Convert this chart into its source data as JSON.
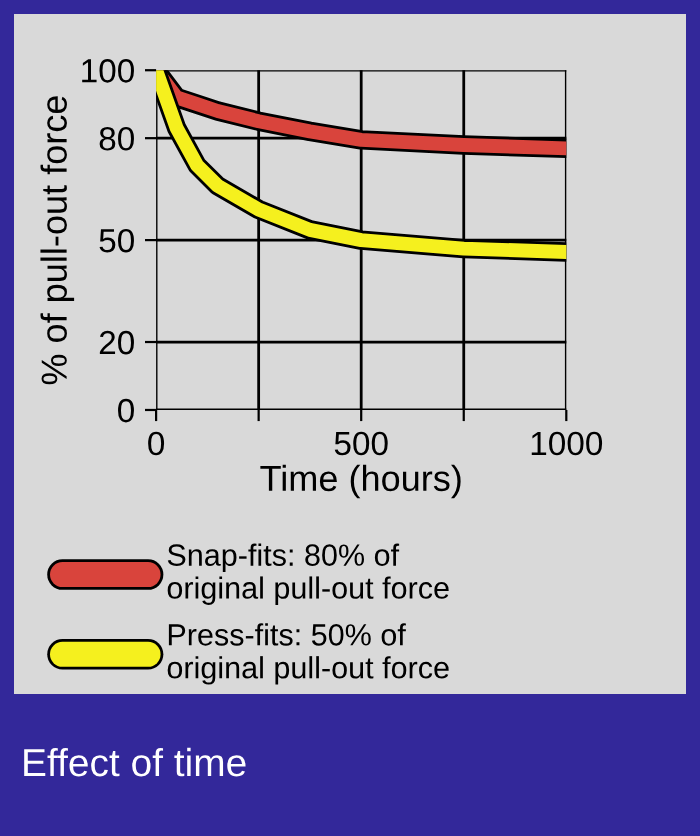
{
  "chart_data": {
    "type": "line",
    "title": "Effect of time",
    "xlabel": "Time (hours)",
    "ylabel": "% of pull-out force",
    "x": [
      0,
      50,
      100,
      150,
      250,
      375,
      500,
      750,
      1000
    ],
    "series": [
      {
        "name": "Snap-fits: 80% of\noriginal pull-out force",
        "color": "#d9443c",
        "values": [
          100,
          92,
          90,
          88,
          85,
          82,
          79.5,
          78,
          77
        ]
      },
      {
        "name": "Press-fits: 50% of\noriginal pull-out force",
        "color": "#f5f01e",
        "values": [
          100,
          83,
          72,
          66,
          59,
          53,
          50,
          47.5,
          46.5
        ]
      }
    ],
    "xlim": [
      0,
      1000
    ],
    "ylim": [
      0,
      100
    ],
    "xticks": [
      0,
      {
        "value": 250,
        "label": null
      },
      500,
      {
        "value": 750,
        "label": null
      },
      1000
    ],
    "yticks": [
      0,
      20,
      50,
      80,
      100
    ],
    "grid": true,
    "legend": "bottom",
    "marker": "none",
    "line_style": "solid"
  }
}
